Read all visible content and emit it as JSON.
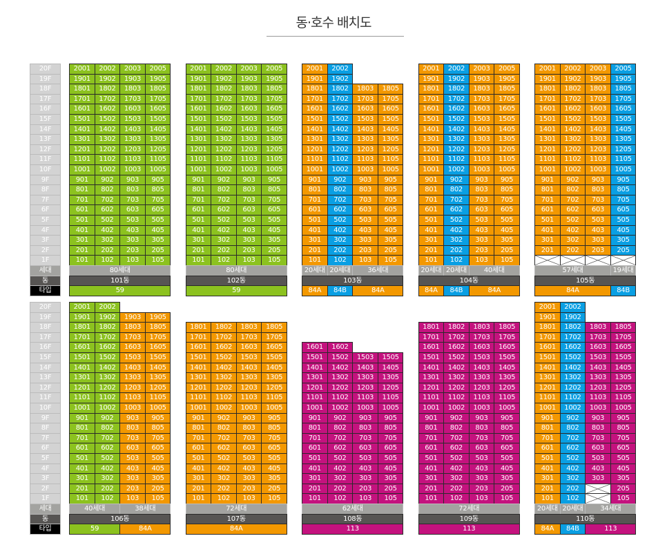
{
  "title": "동·호수 배치도",
  "colors": {
    "green": "#8cc21f",
    "orange": "#f39800",
    "blue": "#0a9fe3",
    "magenta": "#c4127e",
    "floor_label": "#d3d3d3",
    "hh_label": "#a3a3a0",
    "dong_label": "#575553",
    "type_label": "#000000"
  },
  "row_labels": {
    "floors": [
      "20F",
      "19F",
      "18F",
      "17F",
      "16F",
      "15F",
      "14F",
      "13F",
      "12F",
      "11F",
      "10F",
      "9F",
      "8F",
      "7F",
      "6F",
      "5F",
      "4F",
      "3F",
      "2F",
      "1F"
    ],
    "households": "세대",
    "dong": "동",
    "type": "타입"
  },
  "sections": [
    {
      "buildings": [
        {
          "dong": "101동",
          "columns": [
            {
              "suffix": "01",
              "color": "green",
              "top": 20
            },
            {
              "suffix": "02",
              "color": "green",
              "top": 20
            },
            {
              "suffix": "03",
              "color": "green",
              "top": 20
            },
            {
              "suffix": "05",
              "color": "green",
              "top": 20
            }
          ],
          "households": [
            {
              "label": "80세대",
              "span": 4
            }
          ],
          "types": [
            {
              "label": "59",
              "span": 4,
              "color": "green"
            }
          ]
        },
        {
          "dong": "102동",
          "columns": [
            {
              "suffix": "01",
              "color": "green",
              "top": 20
            },
            {
              "suffix": "02",
              "color": "green",
              "top": 20
            },
            {
              "suffix": "03",
              "color": "green",
              "top": 20
            },
            {
              "suffix": "05",
              "color": "green",
              "top": 20
            }
          ],
          "households": [
            {
              "label": "80세대",
              "span": 4
            }
          ],
          "types": [
            {
              "label": "59",
              "span": 4,
              "color": "green"
            }
          ]
        },
        {
          "dong": "103동",
          "columns": [
            {
              "suffix": "01",
              "color": "orange",
              "top": 20
            },
            {
              "suffix": "02",
              "color": "blue",
              "top": 20
            },
            {
              "suffix": "03",
              "color": "orange",
              "top": 18
            },
            {
              "suffix": "05",
              "color": "orange",
              "top": 18
            }
          ],
          "households": [
            {
              "label": "20세대",
              "span": 1
            },
            {
              "label": "20세대",
              "span": 1
            },
            {
              "label": "36세대",
              "span": 2
            }
          ],
          "types": [
            {
              "label": "84A",
              "span": 1,
              "color": "orange"
            },
            {
              "label": "84B",
              "span": 1,
              "color": "blue"
            },
            {
              "label": "84A",
              "span": 2,
              "color": "orange"
            }
          ]
        },
        {
          "dong": "104동",
          "columns": [
            {
              "suffix": "01",
              "color": "orange",
              "top": 20
            },
            {
              "suffix": "02",
              "color": "blue",
              "top": 20
            },
            {
              "suffix": "03",
              "color": "orange",
              "top": 20
            },
            {
              "suffix": "05",
              "color": "orange",
              "top": 20
            }
          ],
          "households": [
            {
              "label": "20세대",
              "span": 1
            },
            {
              "label": "20세대",
              "span": 1
            },
            {
              "label": "40세대",
              "span": 2
            }
          ],
          "types": [
            {
              "label": "84A",
              "span": 1,
              "color": "orange"
            },
            {
              "label": "84B",
              "span": 1,
              "color": "blue"
            },
            {
              "label": "84A",
              "span": 2,
              "color": "orange"
            }
          ]
        },
        {
          "dong": "105동",
          "columns": [
            {
              "suffix": "01",
              "color": "orange",
              "top": 20,
              "none": [
                1
              ]
            },
            {
              "suffix": "02",
              "color": "orange",
              "top": 20,
              "none": [
                1
              ]
            },
            {
              "suffix": "03",
              "color": "orange",
              "top": 20,
              "none": [
                1
              ]
            },
            {
              "suffix": "05",
              "color": "blue",
              "top": 20,
              "none": [
                1
              ]
            }
          ],
          "households": [
            {
              "label": "57세대",
              "span": 3
            },
            {
              "label": "19세대",
              "span": 1
            }
          ],
          "types": [
            {
              "label": "84A",
              "span": 3,
              "color": "orange"
            },
            {
              "label": "84B",
              "span": 1,
              "color": "blue"
            }
          ]
        }
      ]
    },
    {
      "buildings": [
        {
          "dong": "106동",
          "columns": [
            {
              "suffix": "01",
              "color": "green",
              "top": 20
            },
            {
              "suffix": "02",
              "color": "green",
              "top": 20
            },
            {
              "suffix": "03",
              "color": "orange",
              "top": 19
            },
            {
              "suffix": "05",
              "color": "orange",
              "top": 19
            }
          ],
          "households": [
            {
              "label": "40세대",
              "span": 2
            },
            {
              "label": "38세대",
              "span": 2
            }
          ],
          "types": [
            {
              "label": "59",
              "span": 2,
              "color": "green"
            },
            {
              "label": "84A",
              "span": 2,
              "color": "orange"
            }
          ]
        },
        {
          "dong": "107동",
          "columns": [
            {
              "suffix": "01",
              "color": "orange",
              "top": 18
            },
            {
              "suffix": "02",
              "color": "orange",
              "top": 18
            },
            {
              "suffix": "03",
              "color": "orange",
              "top": 18
            },
            {
              "suffix": "05",
              "color": "orange",
              "top": 18
            }
          ],
          "households": [
            {
              "label": "72세대",
              "span": 4
            }
          ],
          "types": [
            {
              "label": "84A",
              "span": 4,
              "color": "orange"
            }
          ]
        },
        {
          "dong": "108동",
          "columns": [
            {
              "suffix": "01",
              "color": "magenta",
              "top": 16
            },
            {
              "suffix": "02",
              "color": "magenta",
              "top": 16
            },
            {
              "suffix": "03",
              "color": "magenta",
              "top": 15
            },
            {
              "suffix": "05",
              "color": "magenta",
              "top": 15
            }
          ],
          "households": [
            {
              "label": "62세대",
              "span": 4
            }
          ],
          "types": [
            {
              "label": "113",
              "span": 4,
              "color": "magenta"
            }
          ]
        },
        {
          "dong": "109동",
          "columns": [
            {
              "suffix": "01",
              "color": "magenta",
              "top": 18
            },
            {
              "suffix": "02",
              "color": "magenta",
              "top": 18
            },
            {
              "suffix": "03",
              "color": "magenta",
              "top": 18
            },
            {
              "suffix": "05",
              "color": "magenta",
              "top": 18
            }
          ],
          "households": [
            {
              "label": "72세대",
              "span": 4
            }
          ],
          "types": [
            {
              "label": "113",
              "span": 4,
              "color": "magenta"
            }
          ]
        },
        {
          "dong": "110동",
          "columns": [
            {
              "suffix": "01",
              "color": "orange",
              "top": 20
            },
            {
              "suffix": "02",
              "color": "blue",
              "top": 20
            },
            {
              "suffix": "03",
              "color": "magenta",
              "top": 18,
              "none": [
                1,
                2
              ]
            },
            {
              "suffix": "05",
              "color": "magenta",
              "top": 18
            }
          ],
          "households": [
            {
              "label": "20세대",
              "span": 1
            },
            {
              "label": "20세대",
              "span": 1
            },
            {
              "label": "34세대",
              "span": 2
            }
          ],
          "types": [
            {
              "label": "84A",
              "span": 1,
              "color": "orange"
            },
            {
              "label": "84B",
              "span": 1,
              "color": "blue"
            },
            {
              "label": "113",
              "span": 2,
              "color": "magenta"
            }
          ]
        }
      ]
    }
  ]
}
